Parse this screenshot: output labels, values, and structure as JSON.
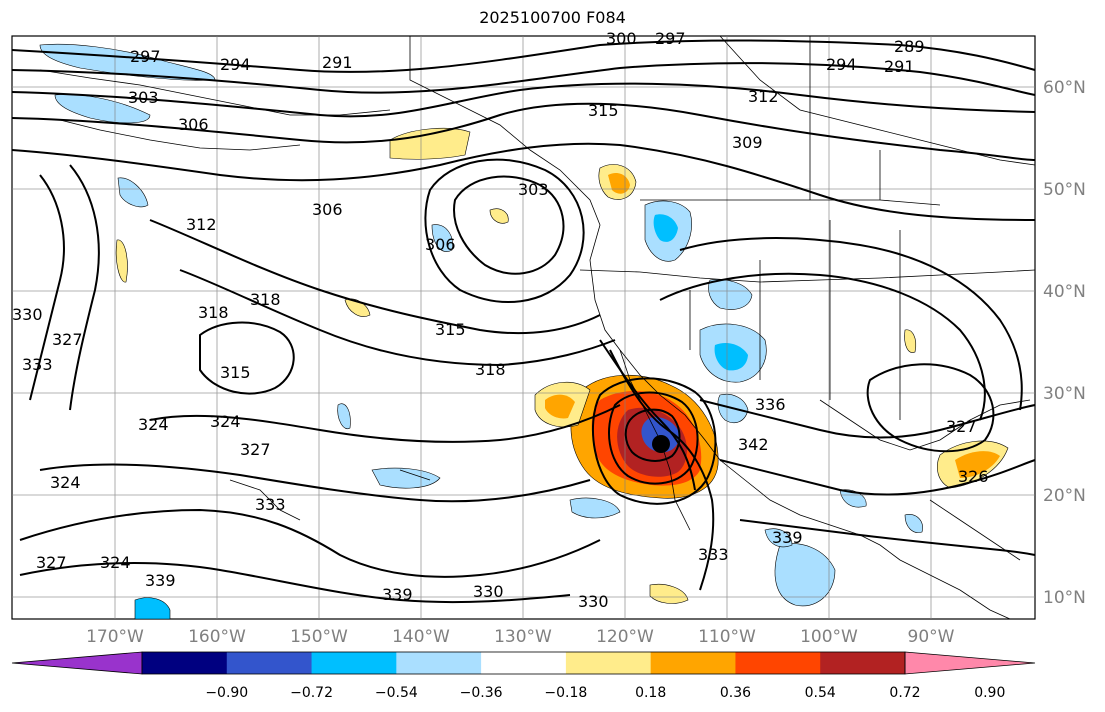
{
  "title": "2025100700 F084",
  "lat_labels": [
    "60°N",
    "50°N",
    "40°N",
    "30°N",
    "20°N",
    "10°N"
  ],
  "lon_labels": [
    "170°W",
    "160°W",
    "150°W",
    "140°W",
    "130°W",
    "120°W",
    "110°W",
    "100°W",
    "90°W"
  ],
  "contour_labels": [
    "297",
    "294",
    "291",
    "300",
    "297",
    "289",
    "291",
    "294",
    "303",
    "306",
    "315",
    "312",
    "309",
    "306",
    "303",
    "306",
    "312",
    "318",
    "318",
    "315",
    "315",
    "318",
    "330",
    "333",
    "327",
    "324",
    "324",
    "327",
    "324",
    "333",
    "324",
    "327",
    "339",
    "339",
    "330",
    "330",
    "333",
    "339",
    "336",
    "342",
    "327",
    "326"
  ],
  "colorbar": {
    "colors": [
      "#9933cc",
      "#000080",
      "#3355cc",
      "#00bfff",
      "#aadfff",
      "#ffffff",
      "#ffec8b",
      "#ffa500",
      "#ff4500",
      "#b22222",
      "#ff88aa"
    ],
    "ticks": [
      "−0.90",
      "−0.72",
      "−0.54",
      "−0.36",
      "−0.18",
      "0.18",
      "0.36",
      "0.54",
      "0.72",
      "0.90"
    ]
  },
  "colors": {
    "contour": "#000000",
    "grid": "#808080",
    "axis_label": "#808080"
  }
}
